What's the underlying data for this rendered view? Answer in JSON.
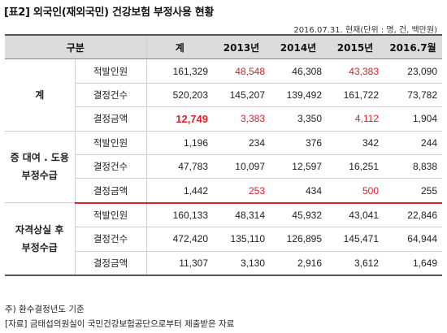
{
  "title": "[표2] 외국인(재외국민) 건강보험 부정사용 현황",
  "unit": "2016.07.31. 현재(단위 : 명, 건, 백만원)",
  "header": {
    "category": "구분",
    "cols": [
      "계",
      "2013년",
      "2014년",
      "2015년",
      "2016.7월"
    ]
  },
  "groups": [
    {
      "label_lines": [
        "계"
      ],
      "rows": [
        {
          "label": "적발인원",
          "values": [
            "161,329",
            "48,548",
            "46,308",
            "43,383",
            "23,090"
          ]
        },
        {
          "label": "결정건수",
          "values": [
            "520,203",
            "145,207",
            "139,492",
            "161,722",
            "73,782"
          ]
        },
        {
          "label": "결정금액",
          "values": [
            "12,749",
            "3,383",
            "3,350",
            "4,112",
            "1,904"
          ]
        }
      ]
    },
    {
      "label_lines": [
        "증 대여 . 도용",
        "부정수급"
      ],
      "rows": [
        {
          "label": "적발인원",
          "values": [
            "1,196",
            "234",
            "376",
            "342",
            "244"
          ]
        },
        {
          "label": "결정건수",
          "values": [
            "47,783",
            "10,097",
            "12,597",
            "16,251",
            "8,838"
          ]
        },
        {
          "label": "결정금액",
          "values": [
            "1,442",
            "253",
            "434",
            "500",
            "255"
          ]
        }
      ]
    },
    {
      "label_lines": [
        "자격상실 후",
        "부정수급"
      ],
      "rows": [
        {
          "label": "적발인원",
          "values": [
            "160,133",
            "48,314",
            "45,932",
            "43,041",
            "22,846"
          ]
        },
        {
          "label": "결정건수",
          "values": [
            "472,420",
            "135,110",
            "126,895",
            "145,471",
            "64,944"
          ]
        },
        {
          "label": "결정금액",
          "values": [
            "11,307",
            "3,130",
            "2,916",
            "3,612",
            "1,649"
          ]
        }
      ]
    }
  ],
  "notes": [
    "주) 환수결정년도 기준",
    "[자료] 금태섭의원실이 국민건강보험공단으로부터 제출받은 자료"
  ],
  "colors": {
    "highlight": "#e0202a",
    "header_bg": "#dcdcdc"
  }
}
